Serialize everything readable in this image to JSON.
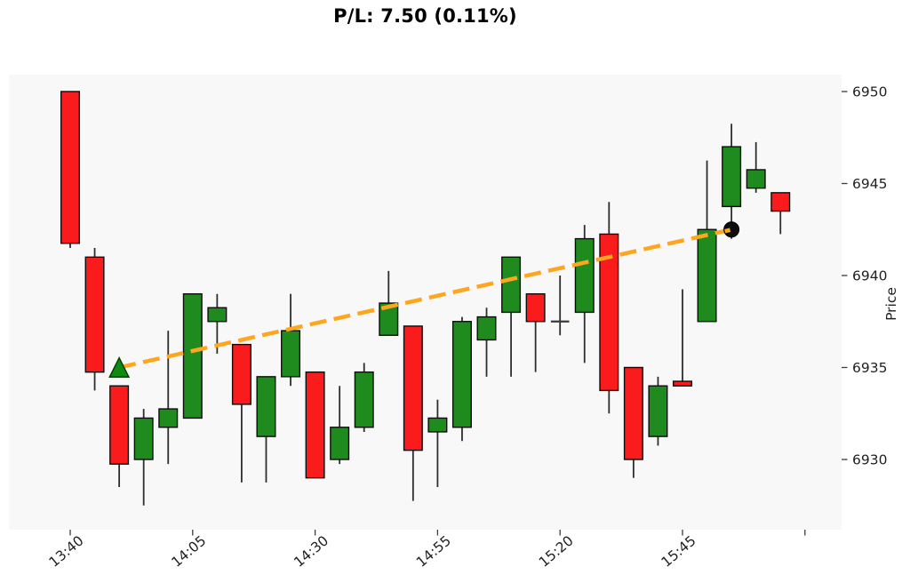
{
  "title": "P/L: 7.50 (0.11%)",
  "chart_data": {
    "type": "candlestick",
    "title": "P/L: 7.50 (0.11%)",
    "xlabel": "",
    "ylabel": "Price",
    "grid": false,
    "legend": "none",
    "y_ticks": [
      6950,
      6945,
      6940,
      6935,
      6930
    ],
    "ylim": [
      6926.2,
      6950.9
    ],
    "x_ticks": [
      {
        "index": 0,
        "label": "13:40"
      },
      {
        "index": 5,
        "label": "14:05"
      },
      {
        "index": 10,
        "label": "14:30"
      },
      {
        "index": 15,
        "label": "14:55"
      },
      {
        "index": 20,
        "label": "15:20"
      },
      {
        "index": 25,
        "label": "15:45"
      },
      {
        "index": 30,
        "label": ""
      }
    ],
    "candles": [
      {
        "time": "13:40",
        "open": 6950.0,
        "high": 6950.0,
        "low": 6941.5,
        "close": 6941.75
      },
      {
        "time": "13:45",
        "open": 6941.0,
        "high": 6941.5,
        "low": 6933.75,
        "close": 6934.75
      },
      {
        "time": "13:50",
        "open": 6934.0,
        "high": 6934.0,
        "low": 6928.5,
        "close": 6929.75
      },
      {
        "time": "13:55",
        "open": 6930.0,
        "high": 6932.75,
        "low": 6927.5,
        "close": 6932.25
      },
      {
        "time": "14:00",
        "open": 6931.75,
        "high": 6937.0,
        "low": 6929.75,
        "close": 6932.75
      },
      {
        "time": "14:05",
        "open": 6932.25,
        "high": 6939.0,
        "low": 6932.25,
        "close": 6939.0
      },
      {
        "time": "14:10",
        "open": 6937.5,
        "high": 6939.0,
        "low": 6935.75,
        "close": 6938.25
      },
      {
        "time": "14:15",
        "open": 6936.25,
        "high": 6936.25,
        "low": 6928.75,
        "close": 6933.0
      },
      {
        "time": "14:20",
        "open": 6931.25,
        "high": 6934.5,
        "low": 6928.75,
        "close": 6934.5
      },
      {
        "time": "14:25",
        "open": 6934.5,
        "high": 6939.0,
        "low": 6934.0,
        "close": 6937.0
      },
      {
        "time": "14:30",
        "open": 6934.75,
        "high": 6934.75,
        "low": 6929.0,
        "close": 6929.0
      },
      {
        "time": "14:35",
        "open": 6930.0,
        "high": 6934.0,
        "low": 6929.75,
        "close": 6931.75
      },
      {
        "time": "14:40",
        "open": 6931.75,
        "high": 6935.25,
        "low": 6931.5,
        "close": 6934.75
      },
      {
        "time": "14:45",
        "open": 6936.75,
        "high": 6940.25,
        "low": 6936.75,
        "close": 6938.5
      },
      {
        "time": "14:50",
        "open": 6937.25,
        "high": 6937.25,
        "low": 6927.75,
        "close": 6930.5
      },
      {
        "time": "14:55",
        "open": 6931.5,
        "high": 6933.25,
        "low": 6928.5,
        "close": 6932.25
      },
      {
        "time": "15:00",
        "open": 6931.75,
        "high": 6937.75,
        "low": 6931.0,
        "close": 6937.5
      },
      {
        "time": "15:05",
        "open": 6936.5,
        "high": 6938.25,
        "low": 6934.5,
        "close": 6937.75
      },
      {
        "time": "15:10",
        "open": 6938.0,
        "high": 6941.0,
        "low": 6934.5,
        "close": 6941.0
      },
      {
        "time": "15:15",
        "open": 6939.0,
        "high": 6939.0,
        "low": 6934.75,
        "close": 6937.5
      },
      {
        "time": "15:20",
        "open": 6937.5,
        "high": 6940.0,
        "low": 6936.75,
        "close": 6937.5
      },
      {
        "time": "15:25",
        "open": 6938.0,
        "high": 6942.75,
        "low": 6935.25,
        "close": 6942.0
      },
      {
        "time": "15:30",
        "open": 6942.25,
        "high": 6944.0,
        "low": 6932.5,
        "close": 6933.75
      },
      {
        "time": "15:35",
        "open": 6935.0,
        "high": 6935.0,
        "low": 6929.0,
        "close": 6930.0
      },
      {
        "time": "15:40",
        "open": 6931.25,
        "high": 6934.5,
        "low": 6930.75,
        "close": 6934.0
      },
      {
        "time": "15:45",
        "open": 6934.25,
        "high": 6939.25,
        "low": 6934.0,
        "close": 6934.0
      },
      {
        "time": "15:50",
        "open": 6937.5,
        "high": 6946.25,
        "low": 6937.5,
        "close": 6942.5
      },
      {
        "time": "15:55",
        "open": 6943.75,
        "high": 6948.25,
        "low": 6942.0,
        "close": 6947.0
      },
      {
        "time": "16:00",
        "open": 6944.75,
        "high": 6947.25,
        "low": 6944.5,
        "close": 6945.75
      },
      {
        "time": "16:05",
        "open": 6944.5,
        "high": 6944.5,
        "low": 6942.25,
        "close": 6943.5
      }
    ],
    "trade": {
      "entry": {
        "time": "13:50",
        "price": 6935.0,
        "marker": "triangle-up"
      },
      "exit": {
        "time": "15:55",
        "price": 6942.5,
        "marker": "circle"
      }
    },
    "colors": {
      "up": "#1f8b1f",
      "down": "#fa1c1c",
      "candle_edge": "#0d0d0d",
      "wick": "#2e2e2e",
      "doji": "#3a3a3a",
      "trade_line": "#ffa51e",
      "entry_marker": "#118a11",
      "entry_marker_edge": "#063f06",
      "exit_marker": "#0d0d0d",
      "plot_bg": "#f8f8f8",
      "tick_text": "#1f1f1f",
      "tick_mark": "#3c3c3c"
    }
  }
}
